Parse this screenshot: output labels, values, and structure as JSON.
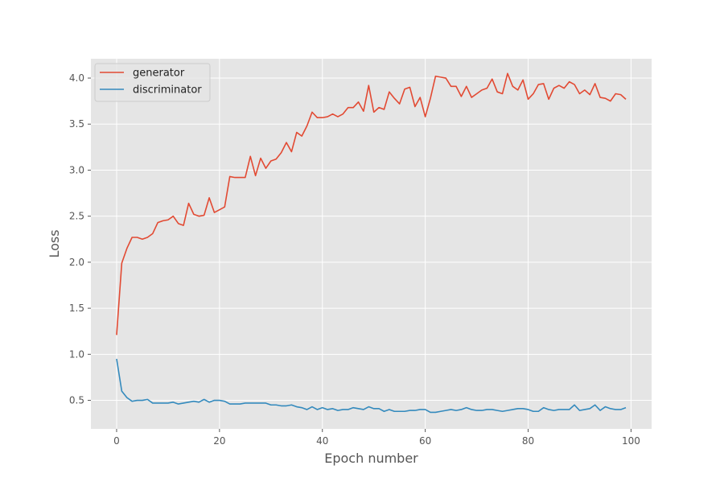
{
  "chart_data": {
    "type": "line",
    "title": "",
    "xlabel": "Epoch number",
    "ylabel": "Loss",
    "xlim": [
      -5,
      104
    ],
    "ylim": [
      0.19,
      4.21
    ],
    "xticks": [
      0,
      20,
      40,
      60,
      80,
      100
    ],
    "yticks": [
      0.5,
      1.0,
      1.5,
      2.0,
      2.5,
      3.0,
      3.5,
      4.0
    ],
    "xtick_labels": [
      "0",
      "20",
      "40",
      "60",
      "80",
      "100"
    ],
    "ytick_labels": [
      "0.5",
      "1.0",
      "1.5",
      "2.0",
      "2.5",
      "3.0",
      "3.5",
      "4.0"
    ],
    "grid": true,
    "legend_position": "top-left",
    "x": [
      0,
      1,
      2,
      3,
      4,
      5,
      6,
      7,
      8,
      9,
      10,
      11,
      12,
      13,
      14,
      15,
      16,
      17,
      18,
      19,
      20,
      21,
      22,
      23,
      24,
      25,
      26,
      27,
      28,
      29,
      30,
      31,
      32,
      33,
      34,
      35,
      36,
      37,
      38,
      39,
      40,
      41,
      42,
      43,
      44,
      45,
      46,
      47,
      48,
      49,
      50,
      51,
      52,
      53,
      54,
      55,
      56,
      57,
      58,
      59,
      60,
      61,
      62,
      63,
      64,
      65,
      66,
      67,
      68,
      69,
      70,
      71,
      72,
      73,
      74,
      75,
      76,
      77,
      78,
      79,
      80,
      81,
      82,
      83,
      84,
      85,
      86,
      87,
      88,
      89,
      90,
      91,
      92,
      93,
      94,
      95,
      96,
      97,
      98,
      99
    ],
    "series": [
      {
        "name": "generator",
        "color": "#e24a33",
        "values": [
          1.21,
          1.99,
          2.15,
          2.27,
          2.27,
          2.25,
          2.27,
          2.31,
          2.43,
          2.45,
          2.46,
          2.5,
          2.42,
          2.4,
          2.64,
          2.52,
          2.5,
          2.51,
          2.7,
          2.54,
          2.57,
          2.6,
          2.93,
          2.92,
          2.92,
          2.92,
          3.15,
          2.94,
          3.13,
          3.02,
          3.1,
          3.12,
          3.19,
          3.3,
          3.2,
          3.41,
          3.37,
          3.48,
          3.63,
          3.57,
          3.57,
          3.58,
          3.61,
          3.58,
          3.61,
          3.68,
          3.68,
          3.74,
          3.64,
          3.92,
          3.63,
          3.68,
          3.66,
          3.85,
          3.78,
          3.72,
          3.88,
          3.9,
          3.69,
          3.79,
          3.58,
          3.78,
          4.02,
          4.01,
          4.0,
          3.91,
          3.91,
          3.8,
          3.91,
          3.79,
          3.83,
          3.87,
          3.89,
          3.99,
          3.85,
          3.83,
          4.05,
          3.91,
          3.87,
          3.98,
          3.77,
          3.83,
          3.93,
          3.94,
          3.77,
          3.89,
          3.92,
          3.89,
          3.96,
          3.93,
          3.83,
          3.87,
          3.82,
          3.94,
          3.79,
          3.78,
          3.75,
          3.83,
          3.82,
          3.77
        ]
      },
      {
        "name": "discriminator",
        "color": "#348abd",
        "values": [
          0.95,
          0.6,
          0.53,
          0.49,
          0.5,
          0.5,
          0.51,
          0.47,
          0.47,
          0.47,
          0.47,
          0.48,
          0.46,
          0.47,
          0.48,
          0.49,
          0.48,
          0.51,
          0.48,
          0.5,
          0.5,
          0.49,
          0.46,
          0.46,
          0.46,
          0.47,
          0.47,
          0.47,
          0.47,
          0.47,
          0.45,
          0.45,
          0.44,
          0.44,
          0.45,
          0.43,
          0.42,
          0.4,
          0.43,
          0.4,
          0.42,
          0.4,
          0.41,
          0.39,
          0.4,
          0.4,
          0.42,
          0.41,
          0.4,
          0.43,
          0.41,
          0.41,
          0.38,
          0.4,
          0.38,
          0.38,
          0.38,
          0.39,
          0.39,
          0.4,
          0.4,
          0.37,
          0.37,
          0.38,
          0.39,
          0.4,
          0.39,
          0.4,
          0.42,
          0.4,
          0.39,
          0.39,
          0.4,
          0.4,
          0.39,
          0.38,
          0.39,
          0.4,
          0.41,
          0.41,
          0.4,
          0.38,
          0.38,
          0.42,
          0.4,
          0.39,
          0.4,
          0.4,
          0.4,
          0.45,
          0.39,
          0.4,
          0.41,
          0.45,
          0.39,
          0.43,
          0.41,
          0.4,
          0.4,
          0.42
        ]
      }
    ]
  }
}
